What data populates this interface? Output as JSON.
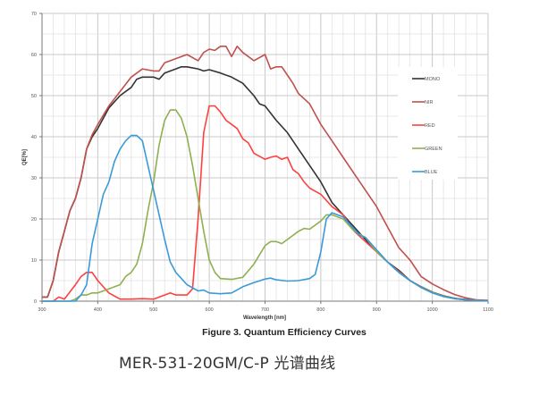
{
  "chart_data": {
    "type": "line",
    "title": "Figure 3. Quantum Efficiency Curves",
    "xlabel": "Wavelength [nm]",
    "ylabel": "QE[%]",
    "xlim": [
      300,
      1100
    ],
    "ylim": [
      0,
      70
    ],
    "xticks": [
      300,
      400,
      500,
      600,
      700,
      800,
      900,
      1000,
      1100
    ],
    "yticks": [
      0,
      10,
      20,
      30,
      40,
      50,
      60,
      70
    ],
    "grid": true,
    "legend_position": "top-right",
    "series": [
      {
        "name": "MONO",
        "color": "#333333",
        "points": [
          [
            300,
            1
          ],
          [
            310,
            1
          ],
          [
            320,
            5
          ],
          [
            330,
            12
          ],
          [
            340,
            17
          ],
          [
            350,
            22
          ],
          [
            360,
            25
          ],
          [
            370,
            30
          ],
          [
            380,
            37
          ],
          [
            390,
            40
          ],
          [
            400,
            42
          ],
          [
            420,
            47
          ],
          [
            440,
            50
          ],
          [
            460,
            52
          ],
          [
            470,
            54
          ],
          [
            480,
            54.5
          ],
          [
            500,
            54.5
          ],
          [
            510,
            54
          ],
          [
            520,
            55.5
          ],
          [
            540,
            56.5
          ],
          [
            550,
            57
          ],
          [
            560,
            57
          ],
          [
            580,
            56.5
          ],
          [
            590,
            56
          ],
          [
            600,
            56.3
          ],
          [
            620,
            55.5
          ],
          [
            640,
            54.5
          ],
          [
            660,
            53
          ],
          [
            680,
            50
          ],
          [
            690,
            48
          ],
          [
            700,
            47.5
          ],
          [
            720,
            44
          ],
          [
            740,
            41
          ],
          [
            760,
            37
          ],
          [
            780,
            33
          ],
          [
            800,
            29
          ],
          [
            820,
            24
          ],
          [
            840,
            21
          ],
          [
            860,
            18
          ],
          [
            880,
            15
          ],
          [
            900,
            12
          ],
          [
            920,
            9.5
          ],
          [
            940,
            7.5
          ],
          [
            960,
            5
          ],
          [
            980,
            3.5
          ],
          [
            1000,
            2.2
          ],
          [
            1020,
            1.3
          ],
          [
            1040,
            0.7
          ],
          [
            1060,
            0.4
          ],
          [
            1080,
            0.2
          ],
          [
            1100,
            0.1
          ]
        ]
      },
      {
        "name": "NIR",
        "color": "#c0504d",
        "points": [
          [
            300,
            1
          ],
          [
            310,
            1
          ],
          [
            320,
            5
          ],
          [
            330,
            12
          ],
          [
            340,
            17
          ],
          [
            350,
            22
          ],
          [
            360,
            25
          ],
          [
            370,
            30
          ],
          [
            380,
            37
          ],
          [
            390,
            40.5
          ],
          [
            400,
            43
          ],
          [
            420,
            47.5
          ],
          [
            440,
            51
          ],
          [
            460,
            54.5
          ],
          [
            480,
            56.5
          ],
          [
            500,
            56
          ],
          [
            510,
            56
          ],
          [
            520,
            58
          ],
          [
            540,
            59
          ],
          [
            560,
            60
          ],
          [
            580,
            58.5
          ],
          [
            590,
            60.5
          ],
          [
            600,
            61.3
          ],
          [
            610,
            61
          ],
          [
            620,
            62
          ],
          [
            630,
            62
          ],
          [
            640,
            59.5
          ],
          [
            650,
            62
          ],
          [
            660,
            60.5
          ],
          [
            680,
            58.5
          ],
          [
            700,
            60
          ],
          [
            710,
            56.5
          ],
          [
            720,
            57
          ],
          [
            730,
            57
          ],
          [
            740,
            55
          ],
          [
            750,
            53
          ],
          [
            760,
            50.5
          ],
          [
            780,
            48
          ],
          [
            800,
            43
          ],
          [
            820,
            39
          ],
          [
            840,
            35
          ],
          [
            860,
            31
          ],
          [
            880,
            27
          ],
          [
            900,
            23
          ],
          [
            920,
            18
          ],
          [
            940,
            13
          ],
          [
            960,
            10
          ],
          [
            980,
            6
          ],
          [
            1000,
            4.2
          ],
          [
            1020,
            2.8
          ],
          [
            1040,
            1.6
          ],
          [
            1060,
            0.8
          ],
          [
            1080,
            0.3
          ],
          [
            1100,
            0.2
          ]
        ]
      },
      {
        "name": "RED",
        "color": "#ff4040",
        "points": [
          [
            300,
            0
          ],
          [
            320,
            0
          ],
          [
            330,
            1
          ],
          [
            340,
            0.5
          ],
          [
            360,
            4
          ],
          [
            370,
            6
          ],
          [
            380,
            7
          ],
          [
            390,
            7
          ],
          [
            400,
            5
          ],
          [
            420,
            2
          ],
          [
            440,
            0.5
          ],
          [
            460,
            0.5
          ],
          [
            480,
            0.6
          ],
          [
            500,
            0.5
          ],
          [
            520,
            1.5
          ],
          [
            530,
            2
          ],
          [
            540,
            1.5
          ],
          [
            560,
            1.5
          ],
          [
            570,
            3
          ],
          [
            580,
            20
          ],
          [
            590,
            41
          ],
          [
            600,
            47.5
          ],
          [
            610,
            47.5
          ],
          [
            620,
            46
          ],
          [
            630,
            44
          ],
          [
            640,
            43
          ],
          [
            650,
            42
          ],
          [
            660,
            39.5
          ],
          [
            670,
            38.5
          ],
          [
            680,
            36
          ],
          [
            700,
            34.5
          ],
          [
            710,
            35
          ],
          [
            720,
            35.3
          ],
          [
            730,
            34.5
          ],
          [
            740,
            35
          ],
          [
            750,
            32
          ],
          [
            760,
            31
          ],
          [
            770,
            29
          ],
          [
            780,
            27.5
          ],
          [
            800,
            26
          ],
          [
            820,
            23
          ],
          [
            840,
            21
          ],
          [
            860,
            17
          ],
          [
            880,
            14.5
          ],
          [
            900,
            12
          ],
          [
            920,
            9.5
          ],
          [
            940,
            7.2
          ],
          [
            960,
            5
          ],
          [
            980,
            3.4
          ],
          [
            1000,
            2.1
          ],
          [
            1020,
            1.2
          ],
          [
            1040,
            0.6
          ],
          [
            1060,
            0.3
          ],
          [
            1080,
            0.2
          ],
          [
            1100,
            0.1
          ]
        ]
      },
      {
        "name": "GREEN",
        "color": "#8fb050",
        "points": [
          [
            300,
            0
          ],
          [
            350,
            0
          ],
          [
            360,
            0.5
          ],
          [
            370,
            1.5
          ],
          [
            380,
            1.5
          ],
          [
            390,
            2
          ],
          [
            400,
            2
          ],
          [
            420,
            3
          ],
          [
            440,
            4
          ],
          [
            450,
            6
          ],
          [
            460,
            7
          ],
          [
            470,
            9
          ],
          [
            480,
            14
          ],
          [
            490,
            22
          ],
          [
            500,
            29
          ],
          [
            510,
            38
          ],
          [
            520,
            44
          ],
          [
            530,
            46.5
          ],
          [
            540,
            46.5
          ],
          [
            550,
            44.5
          ],
          [
            560,
            40
          ],
          [
            570,
            33
          ],
          [
            580,
            25
          ],
          [
            590,
            17
          ],
          [
            600,
            10
          ],
          [
            610,
            7
          ],
          [
            620,
            5.5
          ],
          [
            640,
            5.3
          ],
          [
            660,
            5.8
          ],
          [
            680,
            9
          ],
          [
            700,
            13.5
          ],
          [
            710,
            14.5
          ],
          [
            720,
            14.5
          ],
          [
            730,
            14
          ],
          [
            740,
            15
          ],
          [
            760,
            17
          ],
          [
            770,
            17.7
          ],
          [
            780,
            17.5
          ],
          [
            800,
            19.5
          ],
          [
            810,
            21
          ],
          [
            820,
            21
          ],
          [
            840,
            20
          ],
          [
            860,
            17
          ],
          [
            880,
            15.5
          ],
          [
            900,
            12
          ],
          [
            920,
            9.5
          ],
          [
            940,
            7
          ],
          [
            960,
            5
          ],
          [
            980,
            3.4
          ],
          [
            1000,
            2.1
          ],
          [
            1020,
            1.2
          ],
          [
            1040,
            0.6
          ],
          [
            1060,
            0.3
          ],
          [
            1080,
            0.2
          ],
          [
            1100,
            0.1
          ]
        ]
      },
      {
        "name": "BLUE",
        "color": "#3a9ad9",
        "points": [
          [
            300,
            0
          ],
          [
            360,
            0
          ],
          [
            370,
            1.5
          ],
          [
            380,
            4
          ],
          [
            390,
            14
          ],
          [
            400,
            20
          ],
          [
            410,
            26
          ],
          [
            420,
            29
          ],
          [
            430,
            34
          ],
          [
            440,
            37
          ],
          [
            450,
            39
          ],
          [
            460,
            40.3
          ],
          [
            470,
            40.3
          ],
          [
            480,
            39
          ],
          [
            490,
            33
          ],
          [
            500,
            27
          ],
          [
            510,
            21
          ],
          [
            520,
            15
          ],
          [
            530,
            9.5
          ],
          [
            540,
            7
          ],
          [
            560,
            4
          ],
          [
            580,
            2.5
          ],
          [
            590,
            2.7
          ],
          [
            600,
            2
          ],
          [
            620,
            1.8
          ],
          [
            640,
            2
          ],
          [
            660,
            3.5
          ],
          [
            680,
            4.5
          ],
          [
            700,
            5.4
          ],
          [
            710,
            5.6
          ],
          [
            720,
            5.2
          ],
          [
            740,
            4.9
          ],
          [
            760,
            5
          ],
          [
            780,
            5.5
          ],
          [
            790,
            6.5
          ],
          [
            800,
            12
          ],
          [
            810,
            20
          ],
          [
            820,
            21.5
          ],
          [
            840,
            20.5
          ],
          [
            860,
            17.5
          ],
          [
            870,
            16
          ],
          [
            880,
            15.5
          ],
          [
            900,
            12.5
          ],
          [
            920,
            9.5
          ],
          [
            940,
            7
          ],
          [
            960,
            5
          ],
          [
            980,
            3.3
          ],
          [
            1000,
            2
          ],
          [
            1020,
            1.1
          ],
          [
            1040,
            0.6
          ],
          [
            1060,
            0.3
          ],
          [
            1080,
            0.2
          ],
          [
            1100,
            0.1
          ]
        ]
      }
    ]
  },
  "caption": "MER-531-20GM/C-P 光谱曲线"
}
